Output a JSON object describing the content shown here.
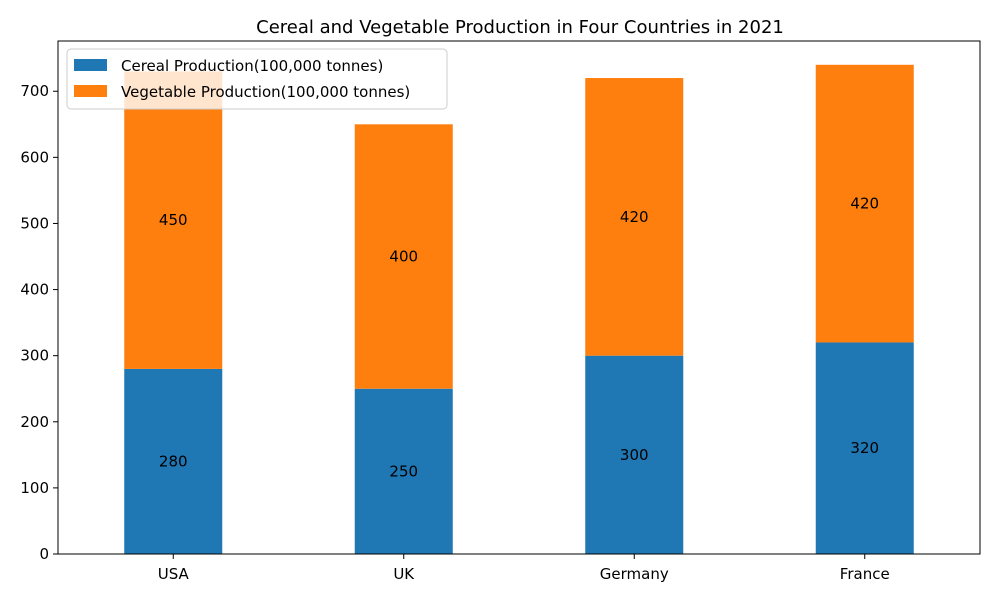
{
  "chart_data": {
    "type": "bar",
    "stacked": true,
    "title": "Cereal and Vegetable Production in Four Countries in 2021",
    "xlabel": "",
    "ylabel": "",
    "categories": [
      "USA",
      "UK",
      "Germany",
      "France"
    ],
    "series": [
      {
        "name": "Cereal Production(100,000 tonnes)",
        "values": [
          280,
          250,
          300,
          320
        ],
        "color": "#1f77b4"
      },
      {
        "name": "Vegetable Production(100,000 tonnes)",
        "values": [
          450,
          400,
          420,
          420
        ],
        "color": "#ff7f0e"
      }
    ],
    "ylim": [
      0,
      776
    ],
    "yticks": [
      0,
      100,
      200,
      300,
      400,
      500,
      600,
      700
    ],
    "grid": false,
    "legend_position": "top-left"
  }
}
